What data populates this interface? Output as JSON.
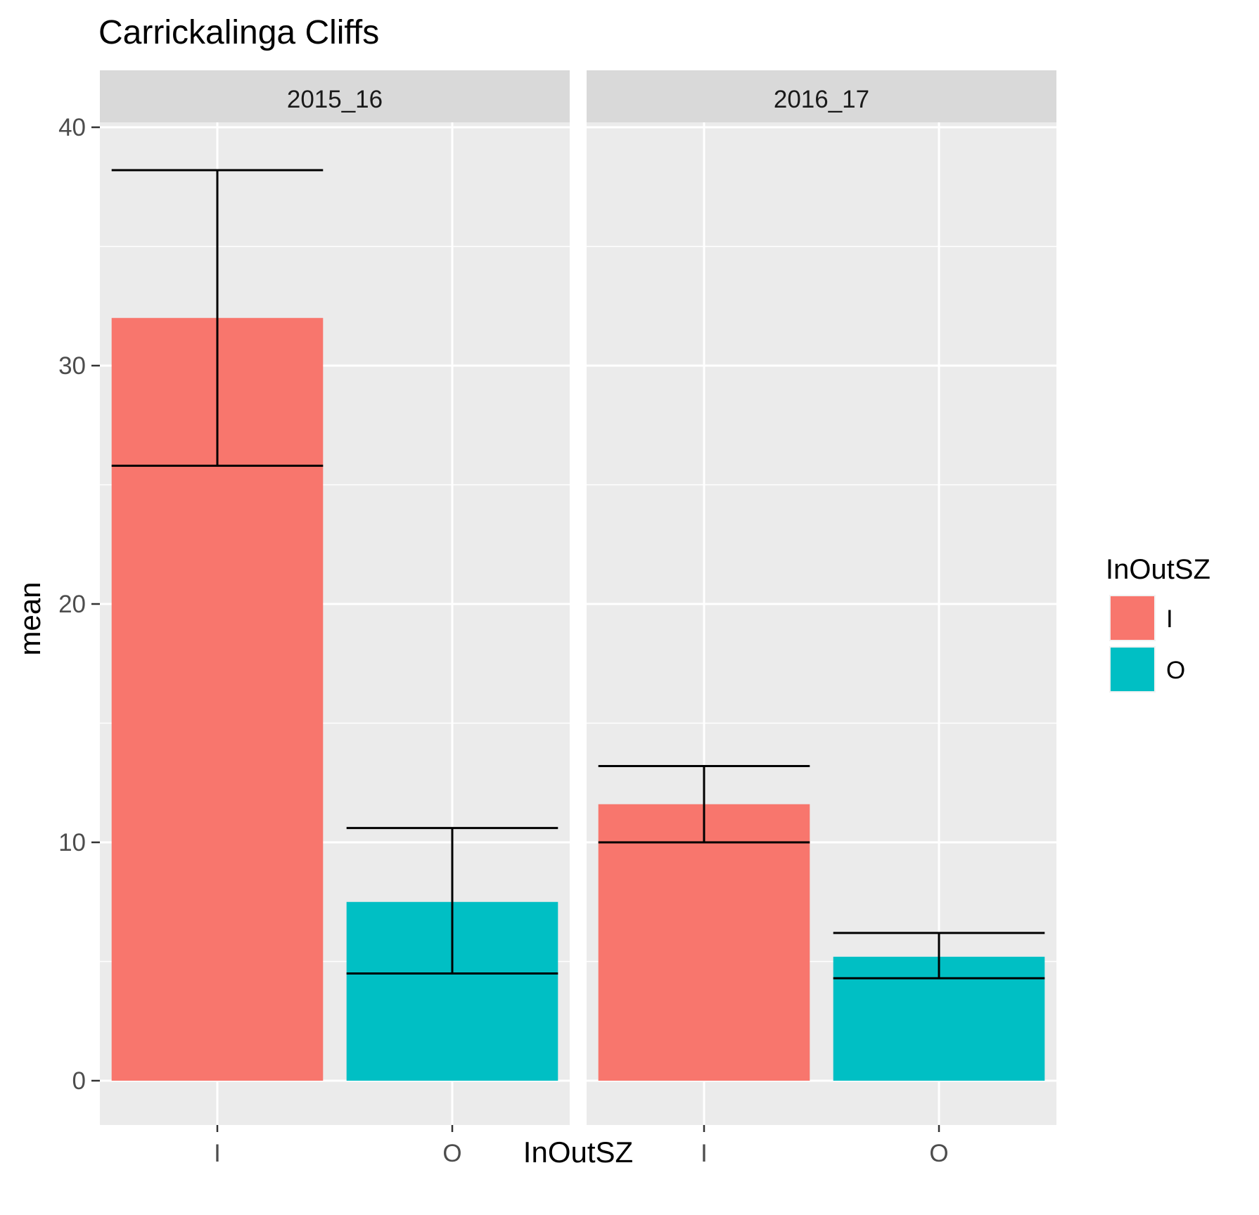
{
  "chart_data": {
    "type": "bar",
    "title": "Carrickalinga Cliffs",
    "xlabel": "InOutSZ",
    "ylabel": "mean",
    "ylim": [
      -2,
      41
    ],
    "y_ticks": [
      0,
      10,
      20,
      30,
      40
    ],
    "grid": true,
    "categories": [
      "I",
      "O"
    ],
    "facets": [
      {
        "label": "2015_16",
        "bars": [
          {
            "category": "I",
            "value": 32.0,
            "err_low": 25.8,
            "err_high": 38.2
          },
          {
            "category": "O",
            "value": 7.5,
            "err_low": 4.5,
            "err_high": 10.6
          }
        ]
      },
      {
        "label": "2016_17",
        "bars": [
          {
            "category": "I",
            "value": 11.6,
            "err_low": 10.0,
            "err_high": 13.2
          },
          {
            "category": "O",
            "value": 5.2,
            "err_low": 4.3,
            "err_high": 6.2
          }
        ]
      }
    ],
    "legend": {
      "title": "InOutSZ",
      "placement": "right",
      "entries": [
        {
          "label": "I",
          "color": "#F8766D"
        },
        {
          "label": "O",
          "color": "#00BFC4"
        }
      ]
    }
  }
}
